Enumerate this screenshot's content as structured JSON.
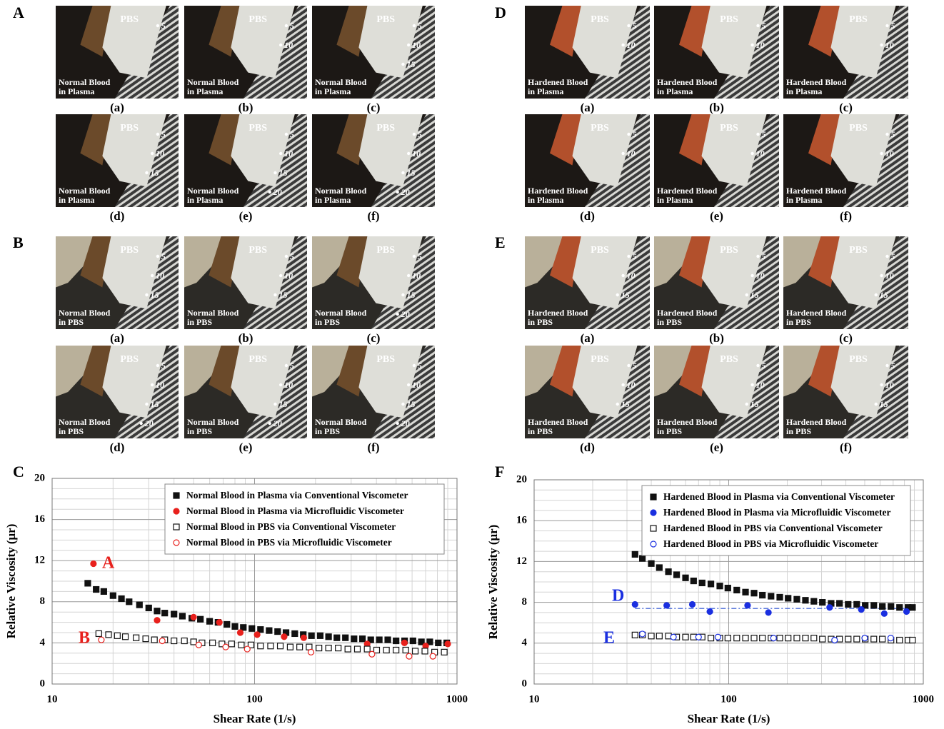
{
  "photo_panels": [
    {
      "letter": "A",
      "images": [
        {
          "caption": "(a)",
          "fluid": "PBS",
          "sample": [
            "Normal Blood",
            "in Plasma"
          ],
          "scale": [
            "5"
          ]
        },
        {
          "caption": "(b)",
          "fluid": "PBS",
          "sample": [
            "Normal Blood",
            "in Plasma"
          ],
          "scale": [
            "5",
            "10"
          ]
        },
        {
          "caption": "(c)",
          "fluid": "PBS",
          "sample": [
            "Normal Blood",
            "in Plasma"
          ],
          "scale": [
            "5",
            "10",
            "15"
          ]
        },
        {
          "caption": "(d)",
          "fluid": "PBS",
          "sample": [
            "Normal Blood",
            "in Plasma"
          ],
          "scale": [
            "5",
            "10",
            "15"
          ]
        },
        {
          "caption": "(e)",
          "fluid": "PBS",
          "sample": [
            "Normal Blood",
            "in Plasma"
          ],
          "scale": [
            "5",
            "10",
            "15",
            "20"
          ]
        },
        {
          "caption": "(f)",
          "fluid": "PBS",
          "sample": [
            "Normal Blood",
            "in Plasma"
          ],
          "scale": [
            "5",
            "10",
            "15",
            "20"
          ]
        }
      ]
    },
    {
      "letter": "B",
      "images": [
        {
          "caption": "(a)",
          "fluid": "PBS",
          "sample": [
            "Normal Blood",
            "in PBS"
          ],
          "scale": [
            "5",
            "10",
            "15"
          ]
        },
        {
          "caption": "(b)",
          "fluid": "PBS",
          "sample": [
            "Normal Blood",
            "in PBS"
          ],
          "scale": [
            "5",
            "10",
            "15"
          ]
        },
        {
          "caption": "(c)",
          "fluid": "PBS",
          "sample": [
            "Normal Blood",
            "in PBS"
          ],
          "scale": [
            "5",
            "10",
            "15",
            "20"
          ]
        },
        {
          "caption": "(d)",
          "fluid": "PBS",
          "sample": [
            "Normal Blood",
            "in PBS"
          ],
          "scale": [
            "5",
            "10",
            "15",
            "20"
          ]
        },
        {
          "caption": "(e)",
          "fluid": "PBS",
          "sample": [
            "Normal Blood",
            "in PBS"
          ],
          "scale": [
            "5",
            "10",
            "15",
            "20"
          ]
        },
        {
          "caption": "(f)",
          "fluid": "PBS",
          "sample": [
            "Normal Blood",
            "in PBS"
          ],
          "scale": [
            "5",
            "10",
            "15",
            "20"
          ]
        }
      ]
    },
    {
      "letter": "D",
      "images": [
        {
          "caption": "(a)",
          "fluid": "PBS",
          "sample": [
            "Hardened Blood",
            "in Plasma"
          ],
          "scale": [
            "5",
            "10"
          ]
        },
        {
          "caption": "(b)",
          "fluid": "PBS",
          "sample": [
            "Hardened Blood",
            "in Plasma"
          ],
          "scale": [
            "5",
            "10"
          ]
        },
        {
          "caption": "(c)",
          "fluid": "PBS",
          "sample": [
            "Hardened Blood",
            "in Plasma"
          ],
          "scale": [
            "5",
            "10"
          ]
        },
        {
          "caption": "(d)",
          "fluid": "PBS",
          "sample": [
            "Hardened Blood",
            "in Plasma"
          ],
          "scale": [
            "5",
            "10"
          ]
        },
        {
          "caption": "(e)",
          "fluid": "PBS",
          "sample": [
            "Hardened Blood",
            "in Plasma"
          ],
          "scale": [
            "5",
            "10"
          ]
        },
        {
          "caption": "(f)",
          "fluid": "PBS",
          "sample": [
            "Hardened Blood",
            "in Plasma"
          ],
          "scale": [
            "5",
            "10"
          ]
        }
      ]
    },
    {
      "letter": "E",
      "images": [
        {
          "caption": "(a)",
          "fluid": "PBS",
          "sample": [
            "Hardened Blood",
            "in PBS"
          ],
          "scale": [
            "5",
            "10",
            "15"
          ]
        },
        {
          "caption": "(b)",
          "fluid": "PBS",
          "sample": [
            "Hardened Blood",
            "in PBS"
          ],
          "scale": [
            "5",
            "10",
            "15"
          ]
        },
        {
          "caption": "(c)",
          "fluid": "PBS",
          "sample": [
            "Hardened Blood",
            "in PBS"
          ],
          "scale": [
            "5",
            "10",
            "15"
          ]
        },
        {
          "caption": "(d)",
          "fluid": "PBS",
          "sample": [
            "Hardened Blood",
            "in PBS"
          ],
          "scale": [
            "5",
            "10",
            "15"
          ]
        },
        {
          "caption": "(e)",
          "fluid": "PBS",
          "sample": [
            "Hardened Blood",
            "in PBS"
          ],
          "scale": [
            "5",
            "10",
            "15"
          ]
        },
        {
          "caption": "(f)",
          "fluid": "PBS",
          "sample": [
            "Hardened Blood",
            "in PBS"
          ],
          "scale": [
            "5",
            "10",
            "15"
          ]
        }
      ]
    }
  ],
  "chart_data": [
    {
      "type": "scatter",
      "panel_label": "C",
      "x_label": "Shear Rate (1/s)",
      "y_label": "Relative Viscosity (μr)",
      "xscale": "log",
      "xlim": [
        10,
        1000
      ],
      "xticks": [
        10,
        100,
        1000
      ],
      "xminorticks": [
        20,
        30,
        40,
        50,
        60,
        70,
        80,
        90,
        200,
        300,
        400,
        500,
        600,
        700,
        800,
        900
      ],
      "ylim": [
        0,
        20
      ],
      "yticks": [
        0,
        4,
        8,
        12,
        16,
        20
      ],
      "yminorticks": [
        1,
        2,
        3,
        5,
        6,
        7,
        9,
        10,
        11,
        13,
        14,
        15,
        17,
        18,
        19
      ],
      "grid": true,
      "legend": "upper right",
      "annotations": [
        {
          "text": "A",
          "color": "#e8201c"
        },
        {
          "text": "B",
          "color": "#e8201c"
        }
      ],
      "series": [
        {
          "name": "Normal Blood in Plasma via Conventional  Viscometer",
          "color": "#111111",
          "marker": "square",
          "filled": true,
          "x": [
            15,
            16.5,
            18,
            20,
            22,
            24,
            27,
            30,
            33,
            36,
            40,
            44,
            49,
            54,
            60,
            66,
            73,
            80,
            88,
            97,
            107,
            118,
            130,
            143,
            158,
            174,
            191,
            211,
            232,
            255,
            281,
            310,
            341,
            375,
            413,
            455,
            500,
            551,
            606,
            667,
            734,
            808,
            890
          ],
          "values": [
            9.8,
            9.2,
            9.0,
            8.6,
            8.3,
            8.0,
            7.7,
            7.4,
            7.1,
            6.9,
            6.8,
            6.6,
            6.4,
            6.3,
            6.1,
            6.0,
            5.8,
            5.6,
            5.5,
            5.4,
            5.3,
            5.2,
            5.1,
            5.0,
            4.9,
            4.8,
            4.7,
            4.7,
            4.6,
            4.5,
            4.5,
            4.4,
            4.4,
            4.3,
            4.3,
            4.3,
            4.2,
            4.2,
            4.2,
            4.1,
            4.1,
            4.0,
            4.0
          ]
        },
        {
          "name": "Normal Blood in Plasma via Microfluidic Viscometer",
          "color": "#e8201c",
          "marker": "circle",
          "filled": true,
          "x": [
            16,
            33,
            50,
            67,
            85,
            103,
            140,
            175,
            360,
            550,
            700,
            900
          ],
          "values": [
            11.7,
            6.2,
            6.5,
            6.0,
            5.0,
            4.8,
            4.6,
            4.5,
            3.9,
            4.0,
            3.7,
            3.9
          ]
        },
        {
          "name": "Normal Blood in PBS via Conventional Viscometer",
          "color": "#111111",
          "marker": "square",
          "filled": false,
          "x": [
            17,
            19,
            21,
            23,
            26,
            29,
            32,
            36,
            40,
            45,
            50,
            55,
            62,
            69,
            77,
            86,
            96,
            107,
            120,
            134,
            150,
            167,
            186,
            208,
            232,
            259,
            289,
            322,
            360,
            401,
            448,
            500,
            558,
            622,
            694,
            775,
            865
          ],
          "values": [
            4.9,
            4.8,
            4.7,
            4.6,
            4.5,
            4.4,
            4.3,
            4.3,
            4.2,
            4.2,
            4.1,
            4.0,
            4.0,
            3.9,
            3.9,
            3.8,
            3.8,
            3.7,
            3.7,
            3.7,
            3.6,
            3.6,
            3.6,
            3.5,
            3.5,
            3.5,
            3.4,
            3.4,
            3.4,
            3.3,
            3.3,
            3.3,
            3.3,
            3.2,
            3.2,
            3.1,
            3.1
          ]
        },
        {
          "name": "Normal Blood in PBS via Microfluidic  Viscometer",
          "color": "#e8201c",
          "marker": "circle",
          "filled": false,
          "x": [
            17.5,
            35,
            53,
            72,
            92,
            190,
            380,
            580,
            760
          ],
          "values": [
            4.3,
            4.2,
            3.8,
            3.6,
            3.4,
            3.1,
            2.9,
            2.7,
            2.7
          ]
        }
      ]
    },
    {
      "type": "scatter",
      "panel_label": "F",
      "x_label": "Shear Rate (1/s)",
      "y_label": "Relative Viscosity (μr)",
      "xscale": "log",
      "xlim": [
        10,
        1000
      ],
      "xticks": [
        10,
        100,
        1000
      ],
      "xminorticks": [
        20,
        30,
        40,
        50,
        60,
        70,
        80,
        90,
        200,
        300,
        400,
        500,
        600,
        700,
        800,
        900
      ],
      "ylim": [
        0,
        20
      ],
      "yticks": [
        0,
        4,
        8,
        12,
        16,
        20
      ],
      "yminorticks": [
        1,
        2,
        3,
        5,
        6,
        7,
        9,
        10,
        11,
        13,
        14,
        15,
        17,
        18,
        19
      ],
      "grid": true,
      "legend": "upper right",
      "annotations": [
        {
          "text": "D",
          "color": "#1a2fe0"
        },
        {
          "text": "E",
          "color": "#1a2fe0"
        }
      ],
      "reference_lines": [
        {
          "y": 7.4,
          "xrange": [
            33,
            880
          ],
          "color": "#4a6bd8"
        }
      ],
      "series": [
        {
          "name": "Hardened Blood in Plasma via Conventional Viscometer",
          "color": "#111111",
          "marker": "square",
          "filled": true,
          "x": [
            33,
            36,
            40,
            44,
            49,
            54,
            60,
            66,
            73,
            81,
            90,
            99,
            110,
            122,
            135,
            149,
            165,
            183,
            202,
            224,
            248,
            274,
            303,
            336,
            371,
            411,
            455,
            503,
            557,
            616,
            682,
            755,
            835,
            880
          ],
          "values": [
            12.7,
            12.3,
            11.8,
            11.4,
            11.0,
            10.7,
            10.4,
            10.1,
            9.9,
            9.8,
            9.6,
            9.4,
            9.2,
            9.0,
            8.9,
            8.7,
            8.6,
            8.5,
            8.4,
            8.3,
            8.2,
            8.1,
            8.0,
            7.9,
            7.9,
            7.8,
            7.8,
            7.7,
            7.7,
            7.6,
            7.6,
            7.5,
            7.5,
            7.5
          ]
        },
        {
          "name": "Hardened Blood in Plasma via Microfluidic Viscometer",
          "color": "#1a2fe0",
          "marker": "circle",
          "filled": true,
          "x": [
            33,
            48,
            65,
            80,
            125,
            160,
            330,
            480,
            630,
            820
          ],
          "values": [
            7.8,
            7.7,
            7.8,
            7.1,
            7.7,
            7.0,
            7.5,
            7.3,
            6.9,
            7.1
          ]
        },
        {
          "name": "Hardened Blood in PBS via Conventional Viscometer",
          "color": "#111111",
          "marker": "square",
          "filled": false,
          "x": [
            33,
            36,
            40,
            44,
            49,
            54,
            60,
            66,
            73,
            81,
            90,
            99,
            110,
            122,
            135,
            149,
            165,
            183,
            202,
            224,
            248,
            274,
            303,
            336,
            371,
            411,
            455,
            503,
            557,
            616,
            682,
            755,
            835,
            880
          ],
          "values": [
            4.8,
            4.8,
            4.7,
            4.7,
            4.7,
            4.6,
            4.6,
            4.6,
            4.6,
            4.5,
            4.5,
            4.5,
            4.5,
            4.5,
            4.5,
            4.5,
            4.5,
            4.5,
            4.5,
            4.5,
            4.5,
            4.5,
            4.4,
            4.4,
            4.4,
            4.4,
            4.4,
            4.4,
            4.4,
            4.4,
            4.3,
            4.3,
            4.3,
            4.3
          ]
        },
        {
          "name": "Hardened Blood in PBS via Microfluidic Viscometer",
          "color": "#1a2fe0",
          "marker": "circle",
          "filled": false,
          "x": [
            36,
            52,
            70,
            88,
            170,
            350,
            500,
            680
          ],
          "values": [
            4.9,
            4.6,
            4.6,
            4.6,
            4.5,
            4.3,
            4.5,
            4.5
          ]
        }
      ]
    }
  ]
}
